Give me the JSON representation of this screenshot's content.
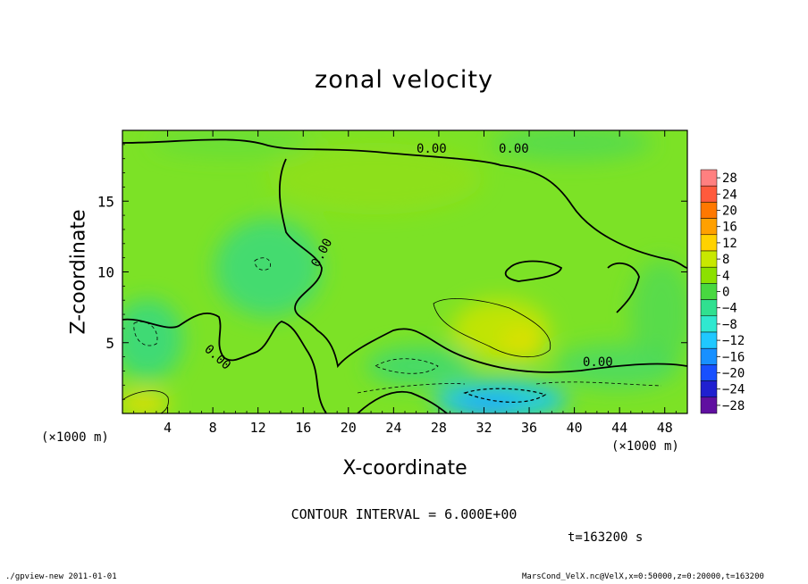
{
  "chart_data": {
    "type": "heatmap",
    "title": "zonal velocity",
    "xlabel": "X-coordinate",
    "ylabel": "Z-coordinate",
    "x_unit_label": "(×1000 m)",
    "xlim": [
      0,
      50
    ],
    "ylim": [
      0,
      20
    ],
    "x_ticks": [
      4,
      8,
      12,
      16,
      20,
      24,
      28,
      32,
      36,
      40,
      44,
      48
    ],
    "y_ticks": [
      5,
      10,
      15
    ],
    "colorbar": {
      "levels": [
        28,
        24,
        20,
        16,
        12,
        8,
        4,
        0,
        -4,
        -8,
        -12,
        -16,
        -20,
        -24,
        -28
      ],
      "colors": [
        "#ff8080",
        "#ff5a3c",
        "#ff7800",
        "#ffa000",
        "#ffd200",
        "#c8e800",
        "#8ce000",
        "#48d840",
        "#30e090",
        "#30e8d0",
        "#20c8ff",
        "#1890ff",
        "#1850ff",
        "#2020d0",
        "#6010a0"
      ]
    },
    "contour_labels": [
      "0.00",
      "0.00",
      "0.00",
      "0.00",
      "0.00"
    ],
    "contour_interval": "CONTOUR INTERVAL = 6.000E+00",
    "time": "t=163200 s"
  },
  "footer": {
    "left": "./gpview-new  2011-01-01",
    "right": "MarsCond_VelX.nc@VelX,x=0:50000,z=0:20000,t=163200"
  }
}
